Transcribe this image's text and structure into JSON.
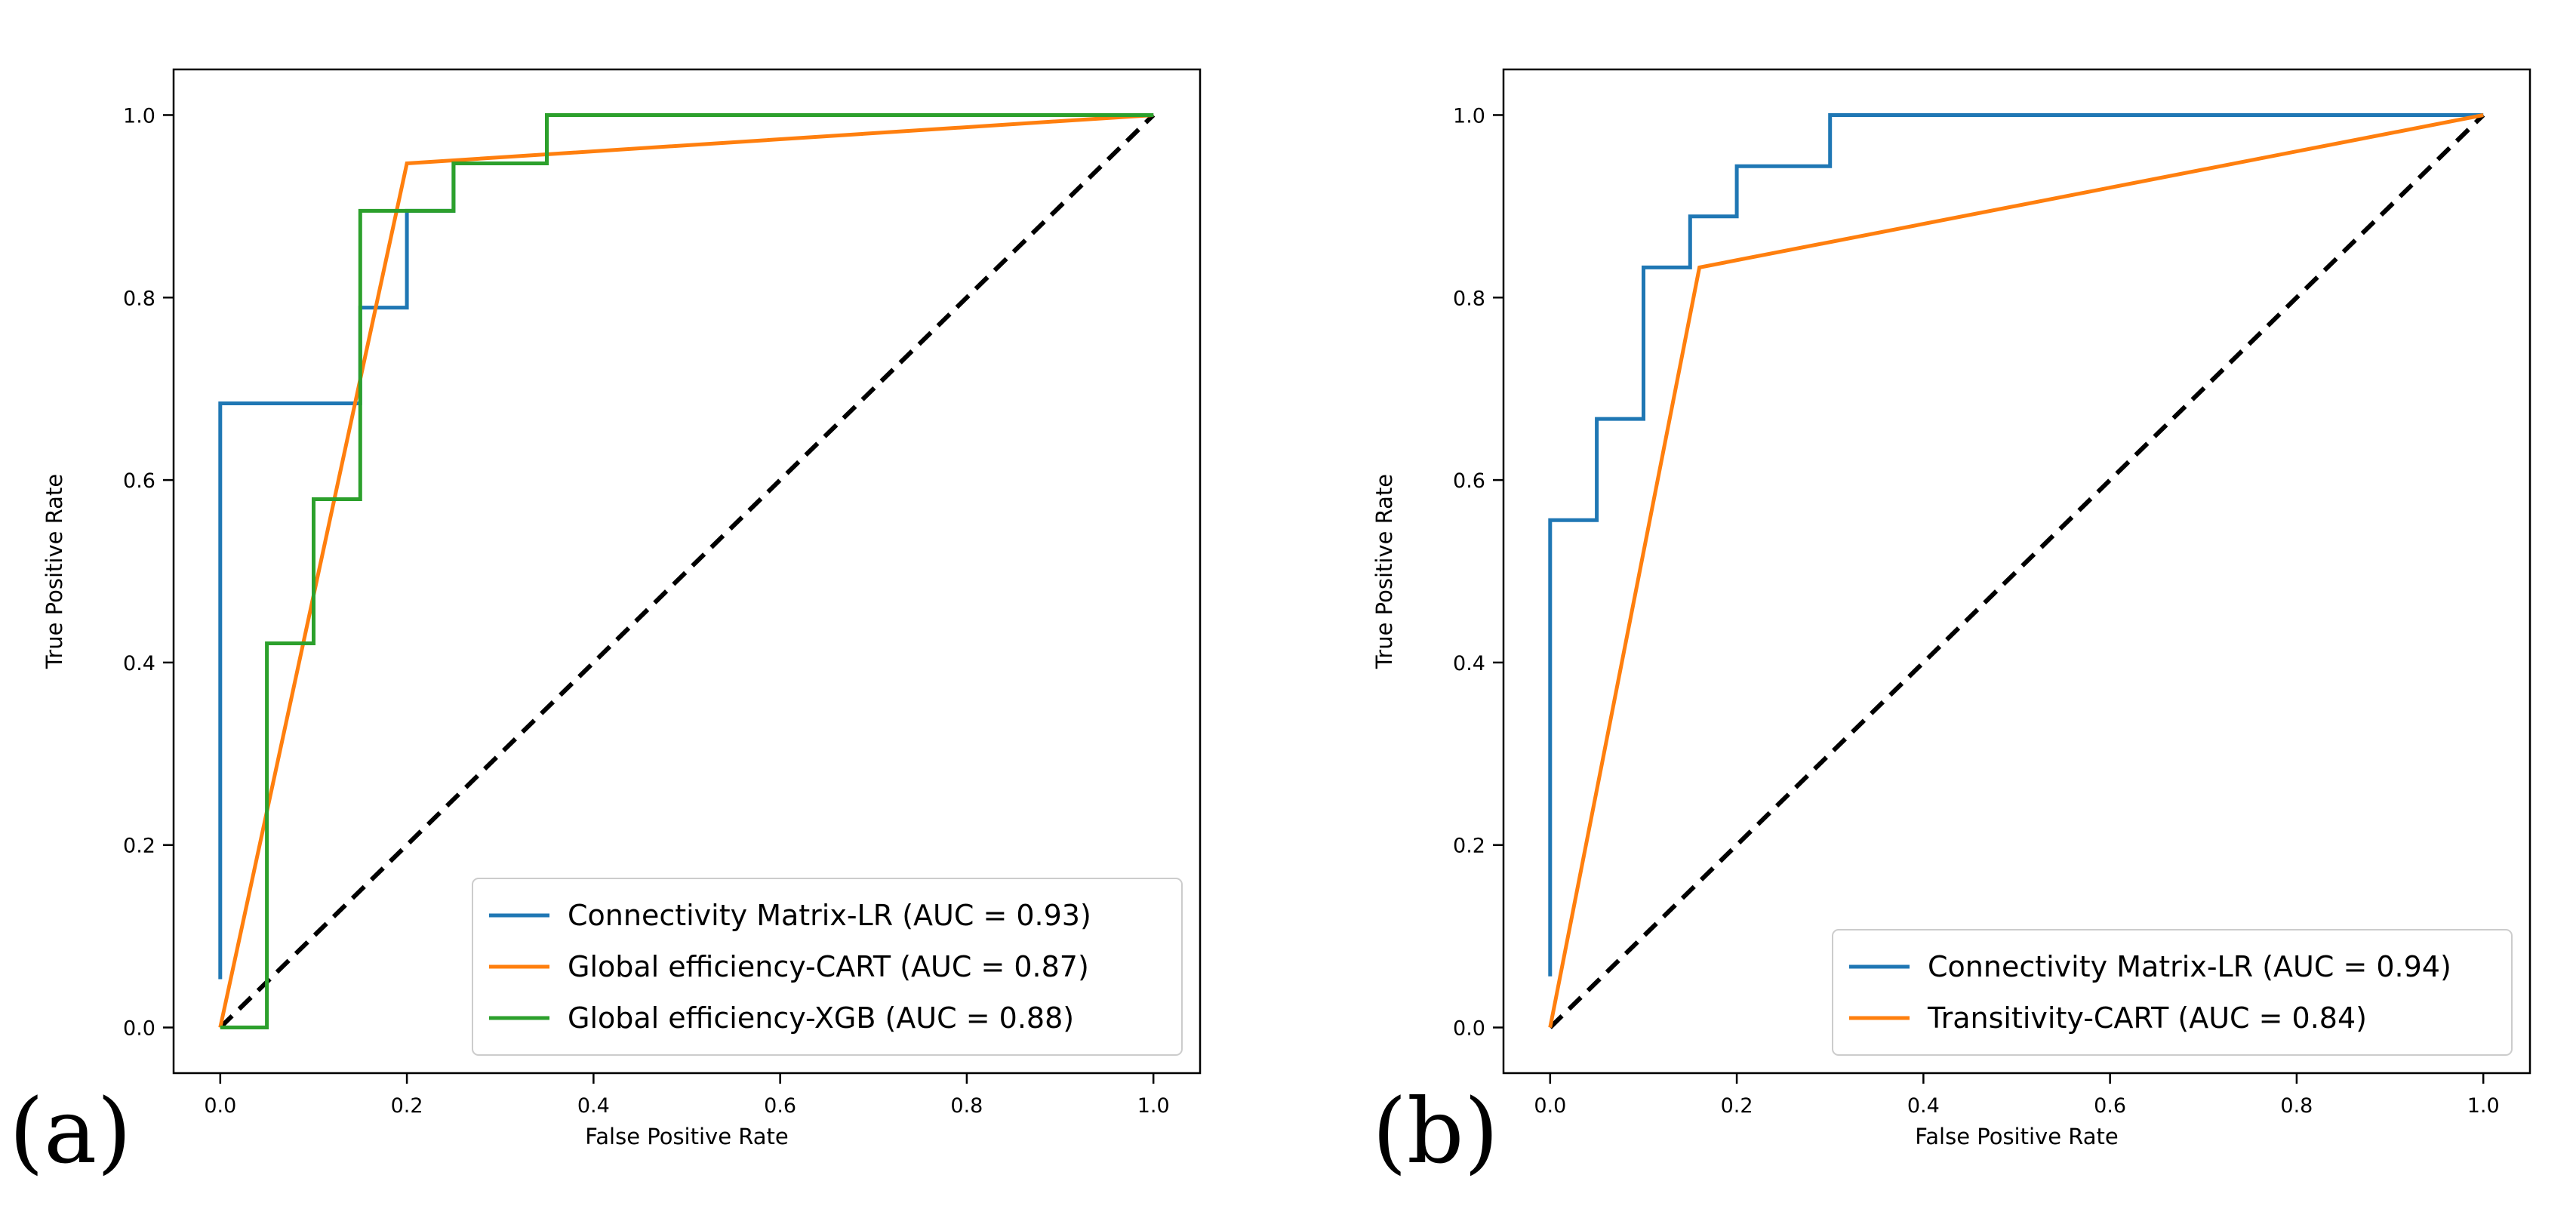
{
  "chart_data": [
    {
      "type": "line",
      "panel_label": "(a)",
      "xlabel": "False Positive Rate",
      "ylabel": "True Positive Rate",
      "xlim": [
        -0.05,
        1.05
      ],
      "ylim": [
        -0.05,
        1.05
      ],
      "xticks": [
        "0.0",
        "0.2",
        "0.4",
        "0.6",
        "0.8",
        "1.0"
      ],
      "yticks": [
        "0.0",
        "0.2",
        "0.4",
        "0.6",
        "0.8",
        "1.0"
      ],
      "grid": false,
      "legend_position": "lower-right",
      "series": [
        {
          "name": "Connectivity Matrix-LR (AUC = 0.93)",
          "color": "#1f77b4",
          "x": [
            0.0,
            0.0,
            0.0,
            0.15,
            0.15,
            0.2,
            0.2,
            0.25,
            0.25,
            0.35,
            0.35,
            1.0
          ],
          "y": [
            0.053,
            0.684,
            0.684,
            0.684,
            0.789,
            0.789,
            0.895,
            0.895,
            0.947,
            0.947,
            1.0,
            1.0
          ]
        },
        {
          "name": "Global efficiency-CART (AUC = 0.87)",
          "color": "#ff7f0e",
          "x": [
            0.0,
            0.2,
            1.0
          ],
          "y": [
            0.0,
            0.947,
            1.0
          ]
        },
        {
          "name": "Global efficiency-XGB (AUC = 0.88)",
          "color": "#2ca02c",
          "x": [
            0.0,
            0.05,
            0.05,
            0.1,
            0.1,
            0.15,
            0.15,
            0.25,
            0.25,
            0.35,
            0.35,
            1.0
          ],
          "y": [
            0.0,
            0.0,
            0.421,
            0.421,
            0.579,
            0.579,
            0.895,
            0.895,
            0.947,
            0.947,
            1.0,
            1.0
          ]
        }
      ],
      "reference_line": {
        "x": [
          0.0,
          1.0
        ],
        "y": [
          0.0,
          1.0
        ],
        "style": "dashed",
        "color": "#000000"
      }
    },
    {
      "type": "line",
      "panel_label": "(b)",
      "xlabel": "False Positive Rate",
      "ylabel": "True Positive Rate",
      "xlim": [
        -0.05,
        1.05
      ],
      "ylim": [
        -0.05,
        1.05
      ],
      "xticks": [
        "0.0",
        "0.2",
        "0.4",
        "0.6",
        "0.8",
        "1.0"
      ],
      "yticks": [
        "0.0",
        "0.2",
        "0.4",
        "0.6",
        "0.8",
        "1.0"
      ],
      "grid": false,
      "legend_position": "lower-right",
      "series": [
        {
          "name": "Connectivity Matrix-LR (AUC = 0.94)",
          "color": "#1f77b4",
          "x": [
            0.0,
            0.0,
            0.05,
            0.05,
            0.1,
            0.1,
            0.15,
            0.15,
            0.2,
            0.2,
            0.3,
            0.3,
            1.0
          ],
          "y": [
            0.056,
            0.556,
            0.556,
            0.667,
            0.667,
            0.833,
            0.833,
            0.889,
            0.889,
            0.944,
            0.944,
            1.0,
            1.0
          ]
        },
        {
          "name": "Transitivity-CART (AUC = 0.84)",
          "color": "#ff7f0e",
          "x": [
            0.0,
            0.16,
            1.0
          ],
          "y": [
            0.0,
            0.833,
            1.0
          ]
        }
      ],
      "reference_line": {
        "x": [
          0.0,
          1.0
        ],
        "y": [
          0.0,
          1.0
        ],
        "style": "dashed",
        "color": "#000000"
      }
    }
  ]
}
